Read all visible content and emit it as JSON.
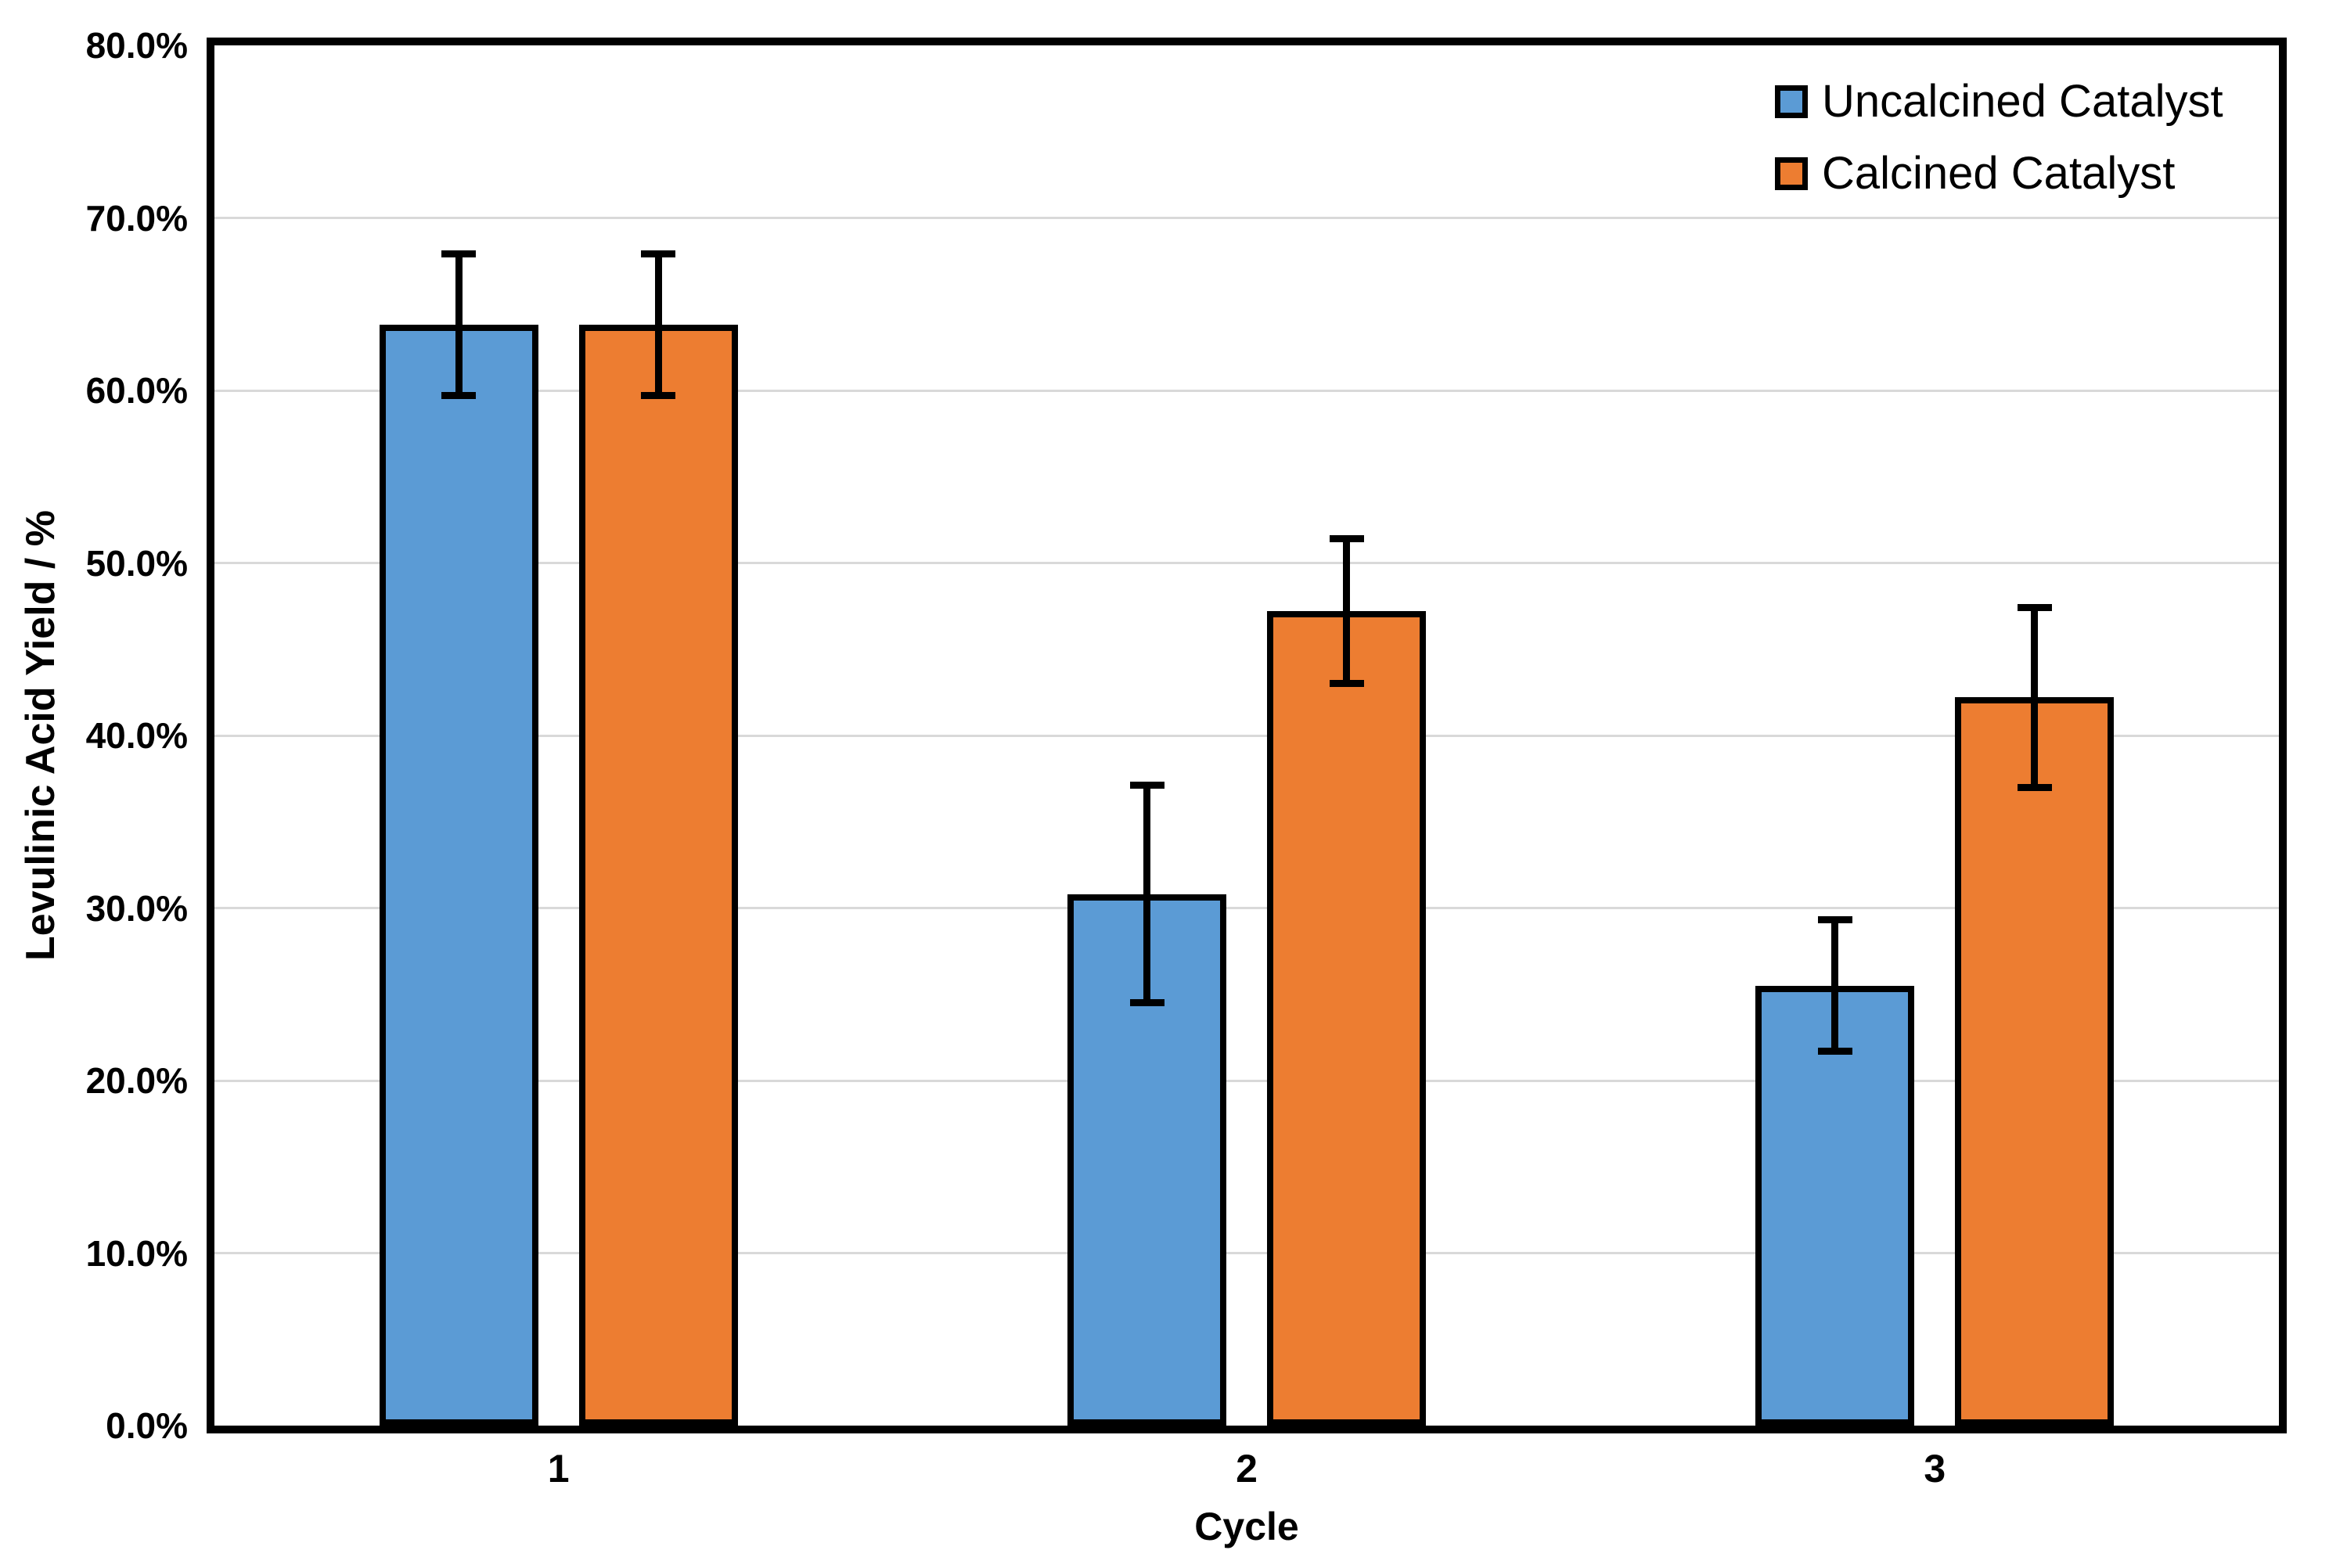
{
  "chart_data": {
    "type": "bar",
    "title": "",
    "categories": [
      "1",
      "2",
      "3"
    ],
    "series": [
      {
        "name": "Uncalcined Catalyst",
        "color": "#5B9BD5",
        "values": [
          63.8,
          30.8,
          25.5
        ],
        "errors": [
          4.1,
          6.3,
          3.8
        ]
      },
      {
        "name": "Calcined Catalyst",
        "color": "#ED7D31",
        "values": [
          63.8,
          47.2,
          42.2
        ],
        "errors": [
          4.1,
          4.2,
          5.2
        ]
      }
    ],
    "xlabel": "Cycle",
    "ylabel": "Levulinic Acid Yield / %",
    "ylim": [
      0,
      80
    ],
    "y_ticks": [
      {
        "value": 0,
        "label": "0.0%"
      },
      {
        "value": 10,
        "label": "10.0%"
      },
      {
        "value": 20,
        "label": "20.0%"
      },
      {
        "value": 30,
        "label": "30.0%"
      },
      {
        "value": 40,
        "label": "40.0%"
      },
      {
        "value": 50,
        "label": "50.0%"
      },
      {
        "value": 60,
        "label": "60.0%"
      },
      {
        "value": 70,
        "label": "70.0%"
      },
      {
        "value": 80,
        "label": "80.0%"
      }
    ],
    "grid": "horizontal",
    "legend_position": "top-right-inside",
    "error_bars": true
  },
  "colors": {
    "gridline": "#D9D9D9",
    "frame": "#000000",
    "error_bar": "#000000",
    "background": "#FFFFFF"
  }
}
